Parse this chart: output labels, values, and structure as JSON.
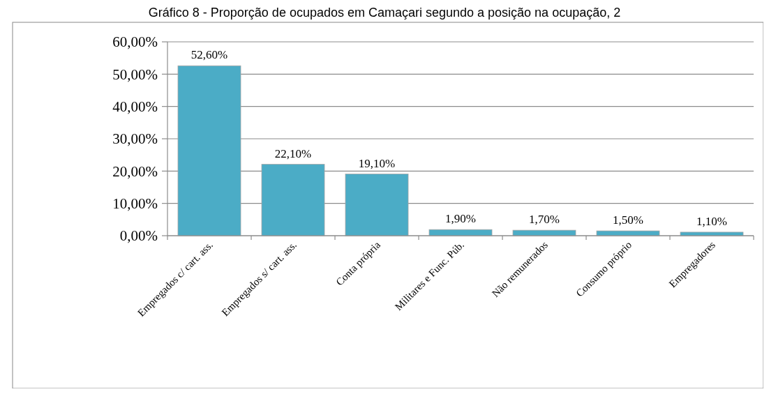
{
  "chart_data": {
    "type": "bar",
    "title": "Gráfico 8 - Proporção de ocupados em Camaçari segundo a posição na ocupação, 2",
    "categories": [
      "Empregados c/ cart. ass.",
      "Empregados s/ cart. ass.",
      "Conta própria",
      "Militares e Func. Púb.",
      "Não remunerados",
      "Consumo próprio",
      "Empregadores"
    ],
    "values": [
      52.6,
      22.1,
      19.1,
      1.9,
      1.7,
      1.5,
      1.1
    ],
    "value_labels": [
      "52,60%",
      "22,10%",
      "19,10%",
      "1,90%",
      "1,70%",
      "1,50%",
      "1,10%"
    ],
    "color": "#4bacc6",
    "ylim": [
      0,
      60
    ],
    "yticks": [
      {
        "value": 0,
        "label": "0,00%"
      },
      {
        "value": 10,
        "label": "10,00%"
      },
      {
        "value": 20,
        "label": "20,00%"
      },
      {
        "value": 30,
        "label": "30,00%"
      },
      {
        "value": 40,
        "label": "40,00%"
      },
      {
        "value": 50,
        "label": "50,00%"
      },
      {
        "value": 60,
        "label": "60,00%"
      }
    ],
    "grid": "y"
  }
}
